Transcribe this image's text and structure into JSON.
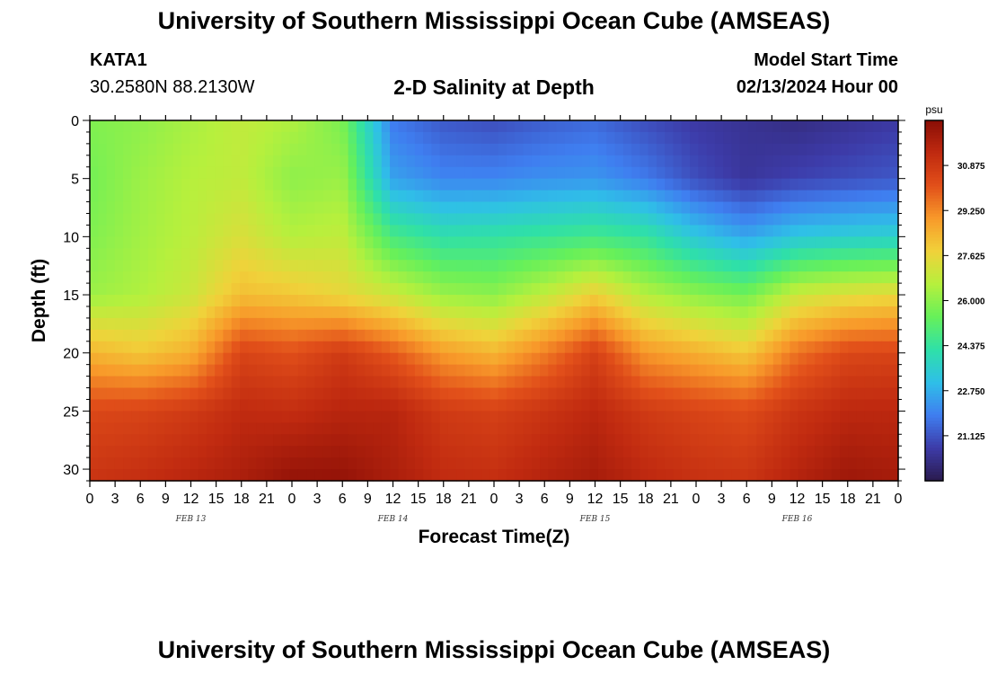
{
  "header": {
    "title": "University of Southern Mississippi Ocean Cube (AMSEAS)",
    "station_name": "KATA1",
    "station_coords": "30.2580N  88.2130W",
    "subtitle": "2-D Salinity at Depth",
    "model_start_label": "Model Start Time",
    "model_start_value": "02/13/2024 Hour 00"
  },
  "footer": {
    "title": "University of Southern Mississippi Ocean Cube (AMSEAS)"
  },
  "chart_data": {
    "type": "heatmap",
    "title": "2-D Salinity at Depth",
    "xlabel": "Forecast Time(Z)",
    "ylabel": "Depth (ft)",
    "x_range_hours": [
      0,
      96
    ],
    "y_range_ft": [
      0,
      31
    ],
    "x_tick_labels": [
      "0",
      "3",
      "6",
      "9",
      "12",
      "15",
      "18",
      "21",
      "0",
      "3",
      "6",
      "9",
      "12",
      "15",
      "18",
      "21",
      "0",
      "3",
      "6",
      "9",
      "12",
      "15",
      "18",
      "21",
      "0",
      "3",
      "6",
      "9",
      "12",
      "15",
      "18",
      "21",
      "0"
    ],
    "y_ticks": [
      "0",
      "5",
      "10",
      "15",
      "20",
      "25",
      "30"
    ],
    "date_labels": [
      "FEB 13",
      "FEB 14",
      "FEB 15",
      "FEB 16"
    ],
    "colorbar": {
      "unit": "psu",
      "range": [
        19.5,
        32.5
      ],
      "ticks": [
        "30.875",
        "29.250",
        "27.625",
        "26.000",
        "24.375",
        "22.750",
        "21.125"
      ],
      "colors": [
        "#2a1a4e",
        "#3d3ba8",
        "#3f7ef0",
        "#2fbfe8",
        "#2fe0a8",
        "#66f05a",
        "#b6f03d",
        "#f0d23a",
        "#f89a2a",
        "#e2501a",
        "#c02a10",
        "#8a0e06"
      ]
    },
    "grid_hours": [
      0,
      6,
      12,
      18,
      24,
      30,
      36,
      42,
      48,
      54,
      60,
      66,
      72,
      78,
      84,
      90,
      96
    ],
    "grid_depths_ft": [
      0,
      5,
      10,
      15,
      20,
      25,
      31
    ],
    "salinity_psu": [
      [
        25.8,
        26.0,
        26.4,
        26.8,
        26.5,
        25.7,
        21.8,
        21.2,
        21.0,
        21.3,
        21.5,
        21.0,
        20.6,
        20.4,
        20.2,
        20.4,
        20.6
      ],
      [
        25.6,
        26.2,
        26.6,
        26.8,
        26.0,
        26.2,
        22.5,
        22.0,
        22.0,
        22.2,
        22.3,
        21.8,
        21.0,
        20.5,
        20.8,
        21.0,
        21.2
      ],
      [
        25.8,
        26.3,
        26.7,
        27.3,
        26.6,
        26.8,
        24.8,
        24.2,
        24.3,
        24.5,
        24.7,
        24.4,
        23.3,
        22.6,
        23.3,
        23.5,
        23.6
      ],
      [
        26.2,
        26.5,
        27.0,
        28.2,
        28.0,
        27.6,
        27.0,
        26.2,
        26.0,
        26.8,
        27.8,
        26.6,
        26.0,
        25.6,
        27.0,
        27.4,
        27.6
      ],
      [
        28.4,
        28.0,
        28.5,
        30.5,
        30.2,
        30.8,
        30.0,
        28.9,
        28.4,
        29.4,
        30.6,
        29.0,
        28.5,
        28.0,
        29.6,
        30.4,
        30.5
      ],
      [
        30.4,
        30.5,
        30.8,
        31.3,
        31.2,
        31.5,
        31.5,
        30.8,
        30.6,
        31.0,
        31.4,
        30.8,
        30.5,
        30.3,
        31.0,
        31.4,
        31.4
      ],
      [
        31.0,
        31.2,
        31.5,
        31.8,
        32.3,
        32.3,
        31.8,
        31.3,
        31.2,
        31.6,
        31.9,
        31.4,
        31.1,
        31.0,
        31.6,
        32.1,
        31.9
      ]
    ]
  }
}
